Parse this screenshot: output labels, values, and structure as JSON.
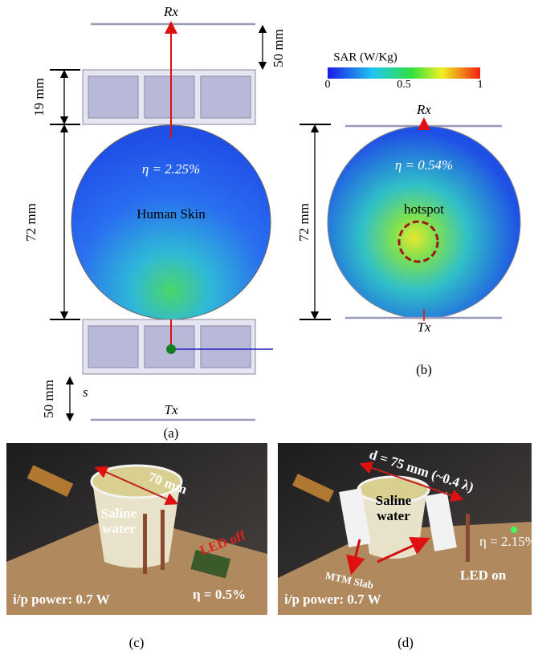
{
  "panel_a": {
    "rx_label": "Rx",
    "gap_top": "50 mm",
    "slab_thickness": "19 mm",
    "skin_diameter": "72 mm",
    "efficiency": "η = 2.25%",
    "skin_label": "Human Skin",
    "gap_bottom": "50 mm",
    "gap_symbol": "s",
    "tx_label": "Tx",
    "caption": "(a)"
  },
  "panel_b": {
    "colorbar": {
      "title": "SAR (W/Kg)",
      "ticks": [
        0,
        0.5,
        1
      ]
    },
    "rx_label": "Rx",
    "efficiency": "η = 0.54%",
    "hotspot_label": "hotspot",
    "skin_diameter": "72 mm",
    "tx_label": "Tx",
    "caption": "(b)"
  },
  "panel_c": {
    "cup_diameter": "70 mm",
    "liquid_label": [
      "Saline",
      "water"
    ],
    "led_state": "LED off",
    "input_power": "i/p power: 0.7 W",
    "efficiency": "η = 0.5%",
    "caption": "(c)"
  },
  "panel_d": {
    "slab_distance": "d = 75 mm (~0.4 λ)",
    "liquid_label": [
      "Saline",
      "water"
    ],
    "slab_label": "MTM Slab",
    "efficiency": "η = 2.15%",
    "led_state": "LED on",
    "input_power": "i/p power: 0.7 W",
    "caption": "(d)"
  }
}
